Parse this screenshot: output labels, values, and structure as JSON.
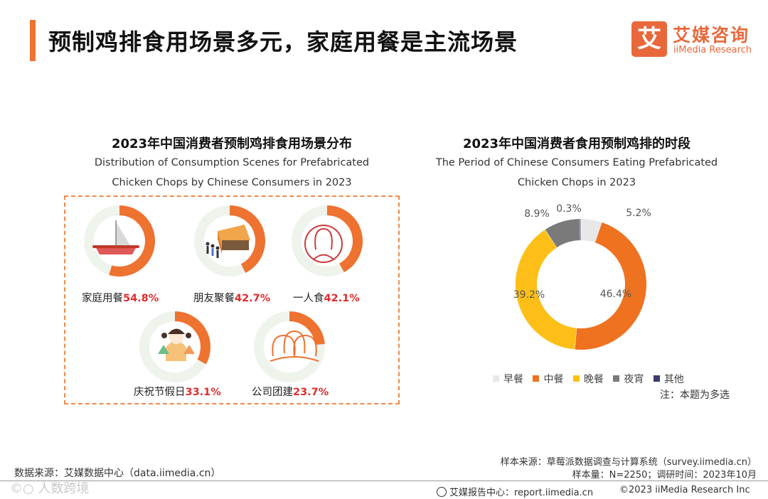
{
  "header": {
    "title": "预制鸡排食用场景多元，家庭用餐是主流场景",
    "logo_mark": "艾",
    "logo_cn": "艾媒咨询",
    "logo_en": "iiMedia Research"
  },
  "colors": {
    "accent": "#ee7230",
    "ring_track": "#eef4ec",
    "value_red": "#e02d2d"
  },
  "chart_data": [
    {
      "type": "radial-progress",
      "title": "2023年中国消费者预制鸡排食用场景分布",
      "subtitle_line1": "Distribution of Consumption Scenes for Prefabricated",
      "subtitle_line2": "Chicken Chops by Chinese Consumers in 2023",
      "items": [
        {
          "label": "家庭用餐",
          "value": 54.8,
          "value_text": "54.8%",
          "icon": "hotpot-icon"
        },
        {
          "label": "朋友聚餐",
          "value": 42.7,
          "value_text": "42.7%",
          "icon": "restaurant-queue-icon"
        },
        {
          "label": "一人食",
          "value": 42.1,
          "value_text": "42.1%",
          "icon": "person-icon"
        },
        {
          "label": "庆祝节假日",
          "value": 33.1,
          "value_text": "33.1%",
          "icon": "celebration-icon"
        },
        {
          "label": "公司团建",
          "value": 23.7,
          "value_text": "23.7%",
          "icon": "group-icon"
        }
      ]
    },
    {
      "type": "pie",
      "title": "2023年中国消费者食用预制鸡排的时段",
      "subtitle_line1": "The Period of Chinese Consumers Eating Prefabricated",
      "subtitle_line2": "Chicken Chops in 2023",
      "slices": [
        {
          "name": "早餐",
          "value": 5.2,
          "value_text": "5.2%",
          "color": "#e8e8e8"
        },
        {
          "name": "中餐",
          "value": 46.4,
          "value_text": "46.4%",
          "color": "#ee7220"
        },
        {
          "name": "晚餐",
          "value": 39.2,
          "value_text": "39.2%",
          "color": "#fdbf17"
        },
        {
          "name": "夜宵",
          "value": 8.9,
          "value_text": "8.9%",
          "color": "#7a7a7a"
        },
        {
          "name": "其他",
          "value": 0.3,
          "value_text": "0.3%",
          "color": "#3b3b6b"
        }
      ],
      "note": "注：本题为多选"
    }
  ],
  "footer": {
    "sample_source": "样本来源：草莓派数据调查与计算系统（survey.iimedia.cn）",
    "sample_size": "样本量：N=2250；调研时间：2023年10月",
    "data_source": "数据来源：艾媒数据中心（data.iimedia.cn）",
    "watermark": "©○ 人数跨境",
    "report_center": "艾媒报告中心：report.iimedia.cn",
    "copyright": "©2023  iiMedia Research  Inc"
  }
}
